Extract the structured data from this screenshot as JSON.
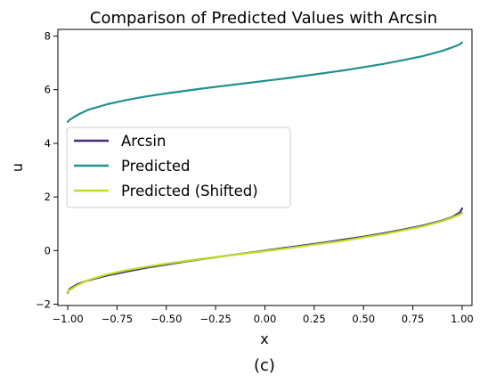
{
  "figure": {
    "caption": "(c)"
  },
  "chart_data": {
    "type": "line",
    "title": "Comparison of Predicted Values with Arcsin",
    "xlabel": "x",
    "ylabel": "u",
    "xlim": [
      -1.05,
      1.05
    ],
    "ylim": [
      -2.05,
      8.25
    ],
    "xticks": [
      -1.0,
      -0.75,
      -0.5,
      -0.25,
      0.0,
      0.25,
      0.5,
      0.75,
      1.0
    ],
    "xtick_labels": [
      "−1.00",
      "−0.75",
      "−0.50",
      "−0.25",
      "0.00",
      "0.25",
      "0.50",
      "0.75",
      "1.00"
    ],
    "yticks": [
      -2,
      0,
      2,
      4,
      6,
      8
    ],
    "ytick_labels": [
      "−2",
      "0",
      "2",
      "4",
      "6",
      "8"
    ],
    "grid": false,
    "legend_position": "center-left",
    "x": [
      -1.0,
      -0.99,
      -0.95,
      -0.9,
      -0.8,
      -0.7,
      -0.6,
      -0.5,
      -0.4,
      -0.3,
      -0.2,
      -0.1,
      0.0,
      0.1,
      0.2,
      0.3,
      0.4,
      0.5,
      0.6,
      0.7,
      0.8,
      0.9,
      0.95,
      0.99,
      1.0
    ],
    "series": [
      {
        "name": "Arcsin",
        "color": "#472c7a",
        "values": [
          -1.57,
          -1.43,
          -1.25,
          -1.12,
          -0.93,
          -0.78,
          -0.64,
          -0.52,
          -0.41,
          -0.3,
          -0.2,
          -0.1,
          0.0,
          0.1,
          0.2,
          0.3,
          0.41,
          0.52,
          0.64,
          0.78,
          0.93,
          1.12,
          1.25,
          1.43,
          1.57
        ]
      },
      {
        "name": "Predicted",
        "color": "#21918c",
        "values": [
          4.8,
          4.88,
          5.06,
          5.24,
          5.46,
          5.62,
          5.75,
          5.86,
          5.96,
          6.06,
          6.15,
          6.24,
          6.33,
          6.42,
          6.52,
          6.62,
          6.72,
          6.84,
          6.96,
          7.1,
          7.25,
          7.45,
          7.58,
          7.7,
          7.76
        ]
      },
      {
        "name": "Predicted (Shifted)",
        "color": "#bddf26",
        "values": [
          -1.55,
          -1.47,
          -1.29,
          -1.11,
          -0.89,
          -0.73,
          -0.6,
          -0.49,
          -0.39,
          -0.29,
          -0.2,
          -0.11,
          -0.02,
          0.07,
          0.17,
          0.27,
          0.37,
          0.49,
          0.61,
          0.75,
          0.9,
          1.1,
          1.23,
          1.35,
          1.41
        ]
      }
    ]
  }
}
